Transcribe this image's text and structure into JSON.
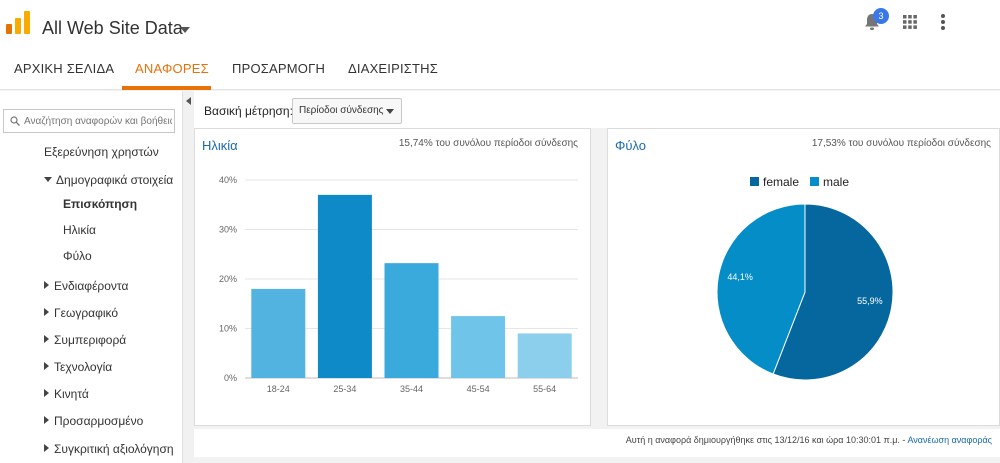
{
  "header": {
    "property_title": "All Web Site Data",
    "notifications_count": "3",
    "icons": [
      "analytics-logo-icon",
      "chevron-down-icon",
      "bell-icon",
      "apps-grid-icon",
      "more-vert-icon"
    ],
    "logo_colors": [
      "#f9ab00",
      "#e37400"
    ]
  },
  "nav": {
    "tabs": [
      {
        "label": "ΑΡΧΙΚΗ ΣΕΛΙΔΑ",
        "active": false
      },
      {
        "label": "ΑΝΑΦΟΡΕΣ",
        "active": true
      },
      {
        "label": "ΠΡΟΣΑΡΜΟΓΗ",
        "active": false
      },
      {
        "label": "ΔΙΑΧΕΙΡΙΣΤΗΣ",
        "active": false
      }
    ],
    "accent_color": "#e8710a"
  },
  "sidebar": {
    "search_placeholder": "Αναζήτηση αναφορών και βοήθειας",
    "items": [
      {
        "label": "Εξερεύνηση χρηστών"
      },
      {
        "label": "Δημογραφικά στοιχεία",
        "expanded": true
      },
      {
        "label": "Επισκόπηση",
        "selected": true
      },
      {
        "label": "Ηλικία"
      },
      {
        "label": "Φύλο"
      },
      {
        "label": "Ενδιαφέροντα"
      },
      {
        "label": "Γεωγραφικό"
      },
      {
        "label": "Συμπεριφορά"
      },
      {
        "label": "Τεχνολογία"
      },
      {
        "label": "Κινητά"
      },
      {
        "label": "Προσαρμοσμένο"
      },
      {
        "label": "Συγκριτική αξιολόγηση"
      }
    ]
  },
  "metric": {
    "label": "Βασική μέτρηση:",
    "selected": "Περίοδοι σύνδεσης"
  },
  "cards": {
    "age": {
      "title": "Ηλικία",
      "subtitle": "15,74% του συνόλου περίοδοι σύνδεσης"
    },
    "gender": {
      "title": "Φύλο",
      "subtitle": "17,53% του συνόλου περίοδοι σύνδεσης"
    }
  },
  "footer": {
    "text": "Αυτή η αναφορά δημιουργήθηκε στις 13/12/16 και ώρα 10:30:01 π.μ. - ",
    "link": "Ανανέωση αναφοράς"
  },
  "chart_data": [
    {
      "type": "bar",
      "title": "Ηλικία",
      "categories": [
        "18-24",
        "25-34",
        "35-44",
        "45-54",
        "55-64"
      ],
      "values": [
        18,
        37,
        23.2,
        12.5,
        9
      ],
      "colors": [
        "#52b3e0",
        "#0f8ac8",
        "#3aa9db",
        "#6ec4e9",
        "#8ccfed"
      ],
      "ylim": [
        0,
        40
      ],
      "yticks": [
        "0%",
        "10%",
        "20%",
        "30%",
        "40%"
      ],
      "grid": true
    },
    {
      "type": "pie",
      "title": "Φύλο",
      "slices": [
        {
          "label": "female",
          "value": 55.9,
          "display": "55,9%",
          "color": "#05679e"
        },
        {
          "label": "male",
          "value": 44.1,
          "display": "44,1%",
          "color": "#058dc7"
        }
      ],
      "legend": "top"
    }
  ]
}
